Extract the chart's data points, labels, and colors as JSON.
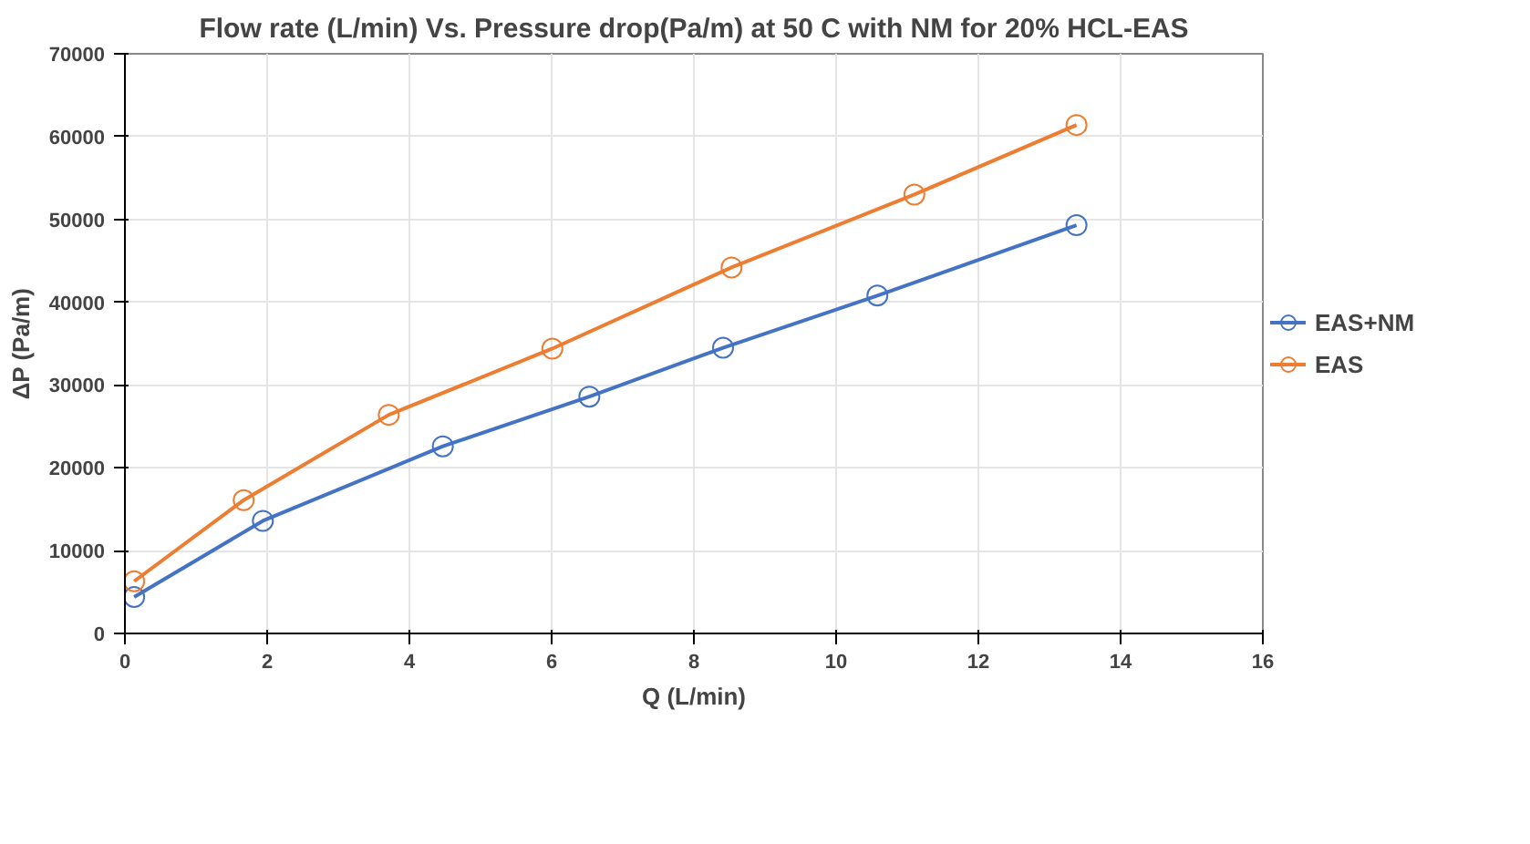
{
  "chart_data": {
    "type": "line",
    "title": "Flow rate (L/min) Vs. Pressure drop(Pa/m) at 50 C with NM for 20% HCL-EAS",
    "xlabel": "Q (L/min)",
    "ylabel": "ΔP (Pa/m)",
    "series": [
      {
        "name": "EAS+NM",
        "color": "#4472c4",
        "x": [
          0.13,
          1.94,
          4.47,
          6.53,
          8.41,
          10.58,
          13.38
        ],
        "values": [
          4400,
          13600,
          22600,
          28600,
          34500,
          40800,
          49300
        ]
      },
      {
        "name": "EAS",
        "color": "#ed7d31",
        "x": [
          0.13,
          1.67,
          3.71,
          6.01,
          8.53,
          11.1,
          13.38
        ],
        "values": [
          6300,
          16100,
          26400,
          34400,
          44200,
          53000,
          61400
        ]
      }
    ],
    "xlim": [
      0,
      16
    ],
    "xticks": [
      0,
      2,
      4,
      6,
      8,
      10,
      12,
      14,
      16
    ],
    "ylim": [
      0,
      70000
    ],
    "yticks": [
      0,
      10000,
      20000,
      30000,
      40000,
      50000,
      60000,
      70000
    ],
    "grid": true,
    "legend": "right",
    "marker": "circle",
    "line_style": "solid"
  }
}
